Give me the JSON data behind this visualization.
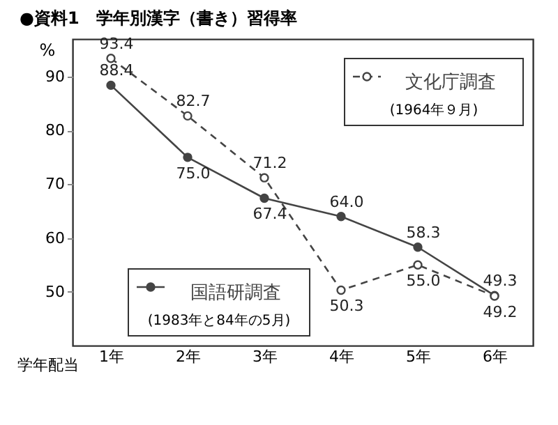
{
  "chart_data": {
    "type": "line",
    "title": "●資料1　学年別漢字（書き）習得率",
    "xlabel": "学年配当",
    "ylabel": "%",
    "categories": [
      "1年",
      "2年",
      "3年",
      "4年",
      "5年",
      "6年"
    ],
    "series": [
      {
        "name": "国語研調査",
        "color": "#444444",
        "line_style": "solid",
        "values": [
          88.4,
          75.0,
          67.4,
          64.0,
          58.3,
          49.3
        ],
        "value_labels": [
          "88.4",
          "75.0",
          "67.4",
          "64.0",
          "58.3",
          "49.3"
        ]
      },
      {
        "name": "文化庁調査",
        "color": "#444444",
        "line_style": "dashed",
        "values": [
          93.4,
          82.7,
          71.2,
          50.3,
          55.0,
          49.2
        ],
        "value_labels": [
          "93.4",
          "82.7",
          "71.2",
          "50.3",
          "55.0",
          "49.2"
        ]
      }
    ],
    "annotations": [
      "(1983年と84年の5月)",
      "(1964年９月)"
    ],
    "ylim": [
      40,
      97
    ],
    "yticks": [
      50,
      60,
      70,
      80,
      90
    ],
    "marker": "circle",
    "grid": false,
    "legend": "top right"
  }
}
